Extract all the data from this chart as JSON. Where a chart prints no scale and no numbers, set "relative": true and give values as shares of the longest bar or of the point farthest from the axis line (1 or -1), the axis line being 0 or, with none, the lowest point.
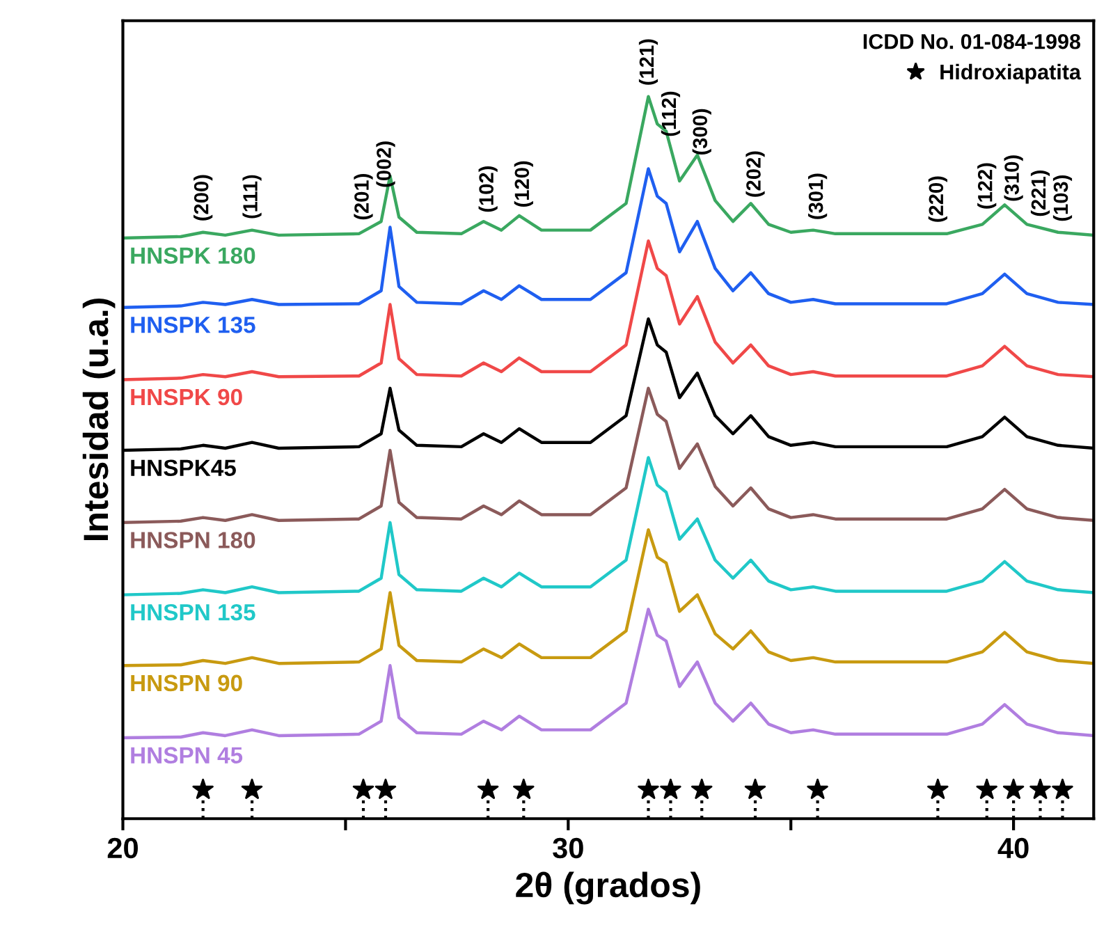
{
  "chart_data": {
    "type": "line",
    "relative": true,
    "xlabel": "2θ (grados)",
    "ylabel": "Intesidad (u.a.)",
    "legend_title": "ICDD No. 01-084-1998",
    "legend": "top right",
    "tick_labels": "x",
    "grid": false,
    "xlim": [
      20,
      41.8
    ],
    "xticks": [
      20,
      {
        "value": 25,
        "label": null
      },
      30,
      {
        "value": 35,
        "label": null
      },
      40
    ],
    "x": [
      20,
      21.3,
      21.8,
      22.3,
      22.9,
      23.5,
      25.3,
      25.8,
      26.0,
      26.2,
      26.6,
      27.6,
      28.1,
      28.5,
      28.9,
      29.4,
      30.5,
      31.3,
      31.8,
      32.0,
      32.2,
      32.5,
      32.9,
      33.3,
      33.7,
      34.1,
      34.5,
      35.0,
      35.5,
      36.0,
      38.5,
      39.3,
      39.8,
      40.3,
      41.0,
      41.8
    ],
    "series": [
      {
        "name": "HNSPK 180",
        "color": "#3aa860",
        "values": [
          0.804,
          0.806,
          0.812,
          0.808,
          0.815,
          0.808,
          0.81,
          0.827,
          0.89,
          0.833,
          0.812,
          0.81,
          0.827,
          0.815,
          0.835,
          0.815,
          0.815,
          0.852,
          1.0,
          0.962,
          0.952,
          0.883,
          0.919,
          0.856,
          0.827,
          0.852,
          0.823,
          0.812,
          0.815,
          0.81,
          0.81,
          0.823,
          0.85,
          0.823,
          0.812,
          0.808
        ]
      },
      {
        "name": "HNSPK 135",
        "color": "#1f5ff0",
        "values": [
          0.708,
          0.71,
          0.715,
          0.712,
          0.719,
          0.712,
          0.713,
          0.731,
          0.819,
          0.737,
          0.715,
          0.713,
          0.731,
          0.719,
          0.738,
          0.719,
          0.719,
          0.756,
          0.9,
          0.862,
          0.852,
          0.785,
          0.827,
          0.762,
          0.731,
          0.756,
          0.727,
          0.715,
          0.719,
          0.713,
          0.713,
          0.727,
          0.754,
          0.727,
          0.715,
          0.712
        ]
      },
      {
        "name": "HNSPK 90",
        "color": "#f04848",
        "values": [
          0.608,
          0.61,
          0.615,
          0.612,
          0.619,
          0.612,
          0.613,
          0.631,
          0.712,
          0.637,
          0.615,
          0.613,
          0.631,
          0.619,
          0.638,
          0.619,
          0.619,
          0.656,
          0.8,
          0.762,
          0.752,
          0.685,
          0.723,
          0.66,
          0.631,
          0.656,
          0.627,
          0.615,
          0.619,
          0.613,
          0.613,
          0.627,
          0.654,
          0.627,
          0.615,
          0.612
        ]
      },
      {
        "name": "HNSPK45",
        "color": "#000000",
        "values": [
          0.51,
          0.512,
          0.517,
          0.513,
          0.521,
          0.513,
          0.515,
          0.533,
          0.596,
          0.538,
          0.517,
          0.515,
          0.533,
          0.521,
          0.54,
          0.521,
          0.521,
          0.558,
          0.692,
          0.656,
          0.646,
          0.583,
          0.617,
          0.558,
          0.533,
          0.558,
          0.529,
          0.517,
          0.521,
          0.515,
          0.515,
          0.529,
          0.556,
          0.529,
          0.517,
          0.513
        ]
      },
      {
        "name": "HNSPN 180",
        "color": "#8b5a5a",
        "values": [
          0.41,
          0.412,
          0.417,
          0.413,
          0.421,
          0.413,
          0.415,
          0.433,
          0.51,
          0.438,
          0.417,
          0.415,
          0.433,
          0.421,
          0.44,
          0.421,
          0.421,
          0.458,
          0.596,
          0.56,
          0.55,
          0.485,
          0.519,
          0.46,
          0.433,
          0.458,
          0.429,
          0.417,
          0.421,
          0.415,
          0.415,
          0.429,
          0.456,
          0.429,
          0.417,
          0.413
        ]
      },
      {
        "name": "HNSPN 135",
        "color": "#20c8c8",
        "values": [
          0.31,
          0.312,
          0.317,
          0.313,
          0.321,
          0.313,
          0.315,
          0.333,
          0.41,
          0.338,
          0.317,
          0.315,
          0.333,
          0.321,
          0.34,
          0.321,
          0.321,
          0.358,
          0.5,
          0.462,
          0.452,
          0.387,
          0.415,
          0.358,
          0.333,
          0.358,
          0.329,
          0.317,
          0.321,
          0.315,
          0.315,
          0.329,
          0.356,
          0.329,
          0.317,
          0.313
        ]
      },
      {
        "name": "HNSPN 90",
        "color": "#c89a10",
        "values": [
          0.212,
          0.213,
          0.219,
          0.215,
          0.223,
          0.215,
          0.217,
          0.235,
          0.313,
          0.24,
          0.219,
          0.217,
          0.235,
          0.223,
          0.242,
          0.223,
          0.223,
          0.26,
          0.4,
          0.362,
          0.354,
          0.287,
          0.31,
          0.256,
          0.235,
          0.26,
          0.231,
          0.219,
          0.223,
          0.217,
          0.217,
          0.231,
          0.258,
          0.231,
          0.219,
          0.215
        ]
      },
      {
        "name": "HNSPN 45",
        "color": "#b07ee0",
        "values": [
          0.112,
          0.113,
          0.119,
          0.115,
          0.123,
          0.115,
          0.117,
          0.135,
          0.212,
          0.14,
          0.119,
          0.117,
          0.135,
          0.123,
          0.142,
          0.123,
          0.123,
          0.16,
          0.29,
          0.254,
          0.246,
          0.183,
          0.217,
          0.16,
          0.135,
          0.16,
          0.131,
          0.119,
          0.123,
          0.117,
          0.117,
          0.131,
          0.158,
          0.131,
          0.119,
          0.115
        ]
      },
      {
        "name": "Hidroxiapatita",
        "type": "scatter",
        "marker": "star",
        "color": "#000000",
        "x": [
          21.8,
          22.9,
          25.4,
          25.9,
          28.2,
          29.0,
          31.8,
          32.3,
          33.0,
          34.2,
          35.6,
          38.3,
          39.4,
          40.0,
          40.6,
          41.1
        ],
        "values": [
          0.04,
          0.04,
          0.04,
          0.04,
          0.04,
          0.04,
          0.04,
          0.04,
          0.04,
          0.04,
          0.04,
          0.04,
          0.04,
          0.04,
          0.04,
          0.04
        ]
      }
    ],
    "annotations": [
      "(200)",
      "(111)",
      "(201)",
      "(002)",
      "(102)",
      "(120)",
      "(121)",
      "(112)",
      "(300)",
      "(202)",
      "(301)",
      "(220)",
      "(122)",
      "(310)",
      "(221)",
      "(103)"
    ]
  }
}
